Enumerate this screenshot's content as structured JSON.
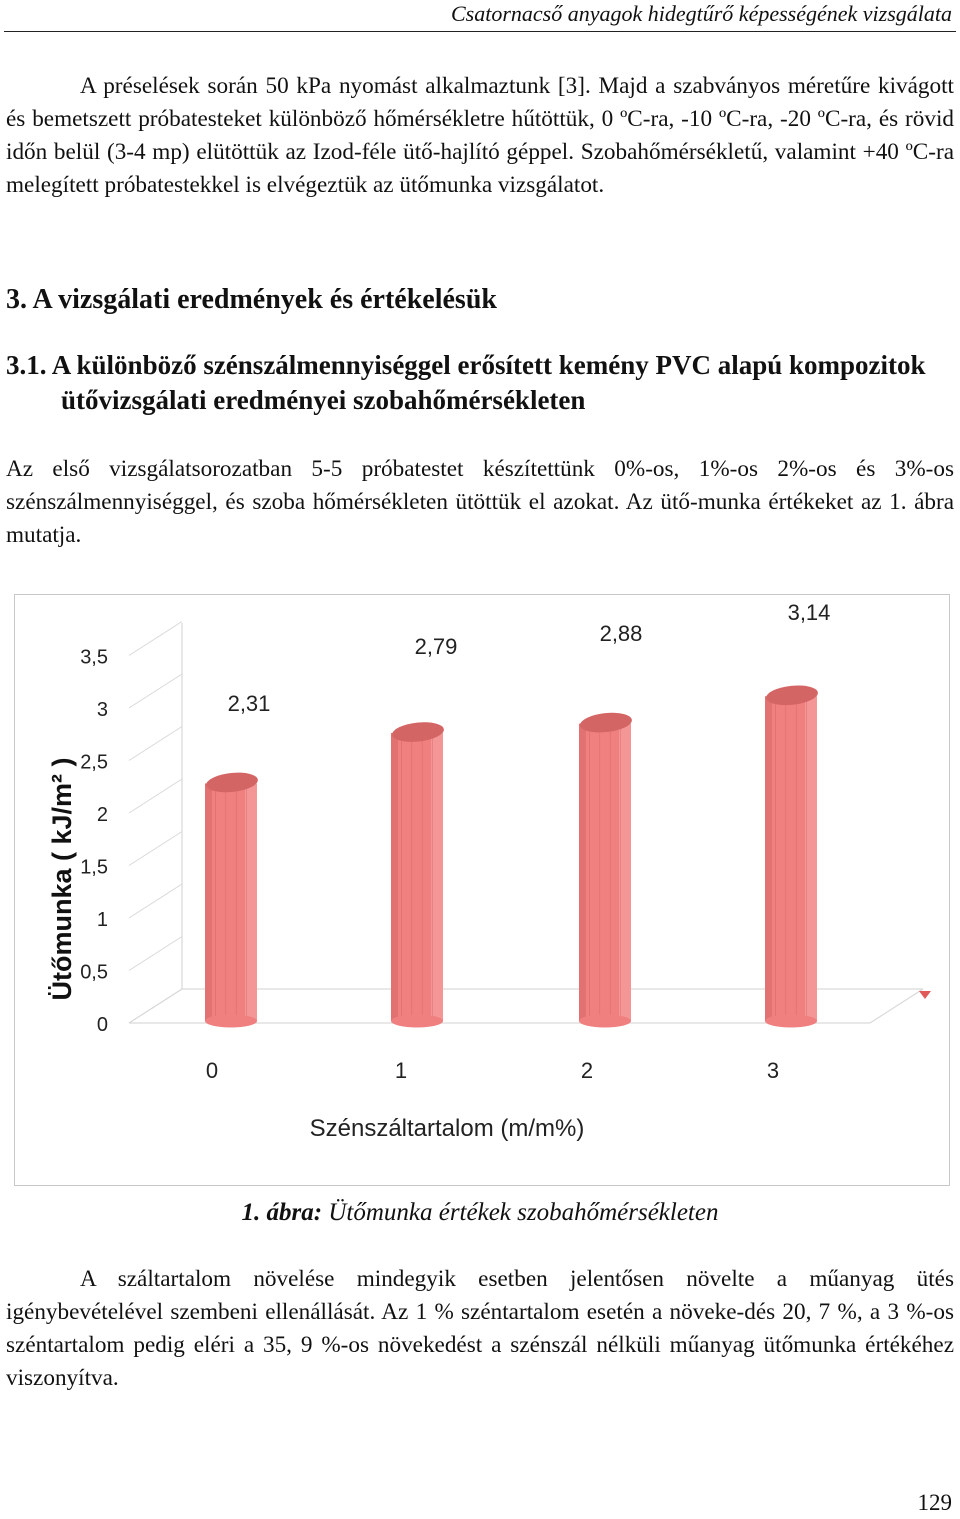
{
  "header": {
    "running_title": "Csatornacső anyagok hidegtűrő képességének vizsgálata"
  },
  "body": {
    "para1": "A préselések során 50 kPa nyomást alkalmaztunk [3]. Majd a szabványos méretűre kivágott és bemetszett próbatesteket különböző hőmérsékletre hűtöttük, 0 ºC-ra, -10 ºC-ra, -20 ºC-ra, és rövid időn belül (3-4 mp) elütöttük az Izod-féle ütő-hajlító géppel. Szobahőmérsékletű, valamint +40 ºC-ra melegített próbatestekkel is elvégeztük az ütőmunka vizsgálatot.",
    "section_heading": "3. A vizsgálati eredmények és értékelésük",
    "subsection_heading": "3.1. A különböző szénszálmennyiséggel erősített kemény PVC alapú kompozitok ütővizsgálati eredményei szobahőmérsékleten",
    "para2": "Az első vizsgálatsorozatban 5-5 próbatestet készítettünk 0%-os, 1%-os 2%-os és 3%-os szénszálmennyiséggel, és szoba hőmérsékleten ütöttük el azokat. Az ütő-munka értékeket az 1. ábra mutatja.",
    "para3": "A száltartalom növelése mindegyik esetben jelentősen növelte a műanyag ütés igénybevételével szembeni ellenállását. Az 1 % széntartalom esetén a növeke-dés 20, 7 %, a 3 %-os széntartalom pedig eléri a 35, 9 %-os növekedést a szénszál nélküli műanyag ütőmunka értékéhez viszonyítva."
  },
  "figure": {
    "caption_number": "1. ábra:",
    "caption_text": "Ütőmunka értékek szobahőmérsékleten"
  },
  "chart_data": {
    "type": "bar",
    "categories": [
      "0",
      "1",
      "2",
      "3"
    ],
    "values": [
      2.31,
      2.79,
      2.88,
      3.14
    ],
    "data_labels": [
      "2,31",
      "2,79",
      "2,88",
      "3,14"
    ],
    "y_ticks": [
      0,
      0.5,
      1,
      1.5,
      2,
      2.5,
      3,
      3.5
    ],
    "y_tick_labels": [
      "0",
      "0,5",
      "1",
      "1,5",
      "2",
      "2,5",
      "3",
      "3,5"
    ],
    "ylim": [
      0,
      3.5
    ],
    "xlabel": "Szénszáltartalom (m/m%)",
    "ylabel": "Ütőmunka ( kJ/m² )",
    "colors": {
      "bar": "#f08080",
      "bar_dark": "#c85656",
      "bar_top": "#d46565",
      "bar_light": "#f9a7a7",
      "axis": "#d9d9d9"
    }
  },
  "footer": {
    "page_number": "129"
  }
}
